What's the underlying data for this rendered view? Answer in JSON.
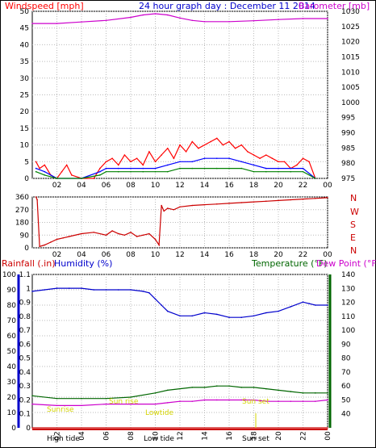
{
  "top_labels": {
    "left": "Windspeed [mph]",
    "title": "24 hour graph day : December 11 2014",
    "right": "Barometer [mb]"
  },
  "bottom_labels": {
    "rainfall": "Rainfall (.in)",
    "humidity": "Humidity (%)",
    "temperature": "Temperature (°F)",
    "dewpoint": "Dew Point (°F)"
  },
  "colors": {
    "wind": "#ff0000",
    "gust": "#0000ff",
    "avg": "#008000",
    "barometer": "#cc00cc",
    "direction": "#cc0000",
    "rain": "#cc0000",
    "humidity": "#0000cc",
    "temperature": "#006600",
    "dewpoint": "#cc00cc",
    "astro": "#dddd00",
    "grid": "#bbbbbb"
  },
  "x_ticks": [
    "02",
    "04",
    "06",
    "08",
    "10",
    "12",
    "14",
    "16",
    "18",
    "20",
    "22",
    "00"
  ],
  "compass": [
    "N",
    "W",
    "S",
    "E",
    "N"
  ],
  "astro_labels": [
    "High tide",
    "Low tide",
    "Sun set",
    "Sunrise",
    "Sun rise",
    "Lowtide",
    "Sun set"
  ],
  "chart_data": [
    {
      "type": "line",
      "name": "windspeed-barometer",
      "xlim": [
        0,
        24
      ],
      "y_left": {
        "label": "Windspeed [mph]",
        "range": [
          0,
          50
        ],
        "ticks": [
          0,
          5,
          10,
          15,
          20,
          25,
          30,
          35,
          40,
          45,
          50
        ]
      },
      "y_right": {
        "label": "Barometer [mb]",
        "range": [
          975,
          1030
        ],
        "ticks": [
          975,
          980,
          985,
          990,
          995,
          1000,
          1005,
          1010,
          1015,
          1020,
          1025,
          1030
        ]
      },
      "series": [
        {
          "key": "barometer",
          "axis": "right",
          "x": [
            0,
            2,
            4,
            6,
            8,
            9,
            10,
            11,
            12,
            13,
            14,
            16,
            18,
            20,
            22,
            24
          ],
          "y": [
            1026,
            1026,
            1026.5,
            1027,
            1028,
            1028.8,
            1029.2,
            1028.8,
            1027.8,
            1027,
            1026.6,
            1026.6,
            1026.9,
            1027.3,
            1027.6,
            1027.6
          ]
        },
        {
          "key": "wind",
          "axis": "left",
          "x": [
            0.3,
            0.6,
            1,
            1.5,
            2,
            2.4,
            2.8,
            3.2,
            4,
            5,
            5.5,
            6,
            6.5,
            7,
            7.5,
            8,
            8.5,
            9,
            9.5,
            10,
            10.5,
            11,
            11.5,
            12,
            12.5,
            13,
            13.5,
            14,
            14.5,
            15,
            15.5,
            16,
            16.5,
            17,
            17.5,
            18,
            18.5,
            19,
            19.5,
            20,
            20.5,
            21,
            21.5,
            22,
            22.5,
            23
          ],
          "y": [
            5,
            3,
            4,
            1,
            0,
            2,
            4,
            1,
            0,
            0,
            3,
            5,
            6,
            4,
            7,
            5,
            6,
            4,
            8,
            5,
            7,
            9,
            6,
            10,
            8,
            11,
            9,
            10,
            11,
            12,
            10,
            11,
            9,
            10,
            8,
            7,
            6,
            7,
            6,
            5,
            5,
            3,
            4,
            6,
            5,
            0
          ]
        },
        {
          "key": "gust",
          "axis": "left",
          "x": [
            0.3,
            1,
            2,
            4,
            5.5,
            6,
            7,
            8,
            9,
            10,
            11,
            12,
            13,
            14,
            15,
            16,
            17,
            18,
            19,
            20,
            21,
            22,
            23
          ],
          "y": [
            3,
            2,
            0,
            0,
            2,
            3,
            3,
            3,
            3,
            3,
            4,
            5,
            5,
            6,
            6,
            6,
            5,
            4,
            3,
            3,
            3,
            3,
            0
          ]
        },
        {
          "key": "avg",
          "axis": "left",
          "x": [
            0.3,
            1,
            2,
            4,
            5.5,
            6,
            7,
            8,
            9,
            10,
            11,
            12,
            13,
            14,
            15,
            16,
            17,
            18,
            19,
            20,
            21,
            22,
            23
          ],
          "y": [
            2,
            1,
            0,
            0,
            1,
            2,
            2,
            2,
            2,
            2,
            2,
            3,
            3,
            3,
            3,
            3,
            3,
            2,
            2,
            2,
            2,
            2,
            0
          ]
        }
      ]
    },
    {
      "type": "line",
      "name": "wind-direction",
      "xlim": [
        0,
        24
      ],
      "y_left": {
        "range": [
          0,
          360
        ],
        "ticks": [
          0,
          90,
          180,
          270,
          360
        ]
      },
      "series": [
        {
          "key": "direction",
          "x": [
            0.3,
            0.4,
            0.6,
            1,
            1.5,
            2,
            2.5,
            3,
            4,
            5,
            6,
            6.5,
            7,
            7.5,
            8,
            8.5,
            9,
            9.5,
            10,
            10.3,
            10.5,
            10.7,
            11,
            11.5,
            12,
            13,
            14,
            15,
            16,
            17,
            18,
            19,
            20,
            21,
            22,
            23,
            24
          ],
          "y": [
            360,
            340,
            10,
            20,
            40,
            60,
            70,
            80,
            100,
            110,
            90,
            120,
            100,
            90,
            110,
            80,
            90,
            100,
            60,
            20,
            300,
            260,
            280,
            270,
            290,
            300,
            305,
            310,
            315,
            320,
            325,
            330,
            335,
            340,
            345,
            350,
            355
          ]
        }
      ]
    },
    {
      "type": "line",
      "name": "rain-humidity-temperature",
      "xlim": [
        0,
        24
      ],
      "y_left": {
        "label": "Humidity (%)",
        "range": [
          0,
          100
        ],
        "ticks": [
          0,
          10,
          20,
          30,
          40,
          50,
          60,
          70,
          80,
          90,
          100
        ]
      },
      "y_rain": {
        "label": "Rainfall (.in)",
        "range": [
          0,
          1.1
        ],
        "ticks": [
          0,
          0.1,
          0.2,
          0.3,
          0.4,
          0.5,
          0.6,
          0.7,
          0.8,
          0.9,
          1,
          1.1
        ]
      },
      "y_right": {
        "label": "Temperature (°F)",
        "range": [
          30,
          140
        ],
        "ticks": [
          40,
          50,
          60,
          70,
          80,
          90,
          100,
          110,
          120,
          130,
          140
        ]
      },
      "series": [
        {
          "key": "humidity",
          "axis": "left",
          "x": [
            0,
            1,
            2,
            3,
            4,
            5,
            6,
            7,
            8,
            9,
            9.5,
            10,
            10.5,
            11,
            12,
            13,
            14,
            15,
            16,
            17,
            18,
            19,
            20,
            21,
            22,
            22.5,
            23,
            24
          ],
          "y": [
            89,
            90,
            91,
            91,
            91,
            90,
            90,
            90,
            90,
            89,
            88,
            84,
            80,
            76,
            73,
            73,
            75,
            74,
            72,
            72,
            73,
            75,
            76,
            79,
            82,
            81,
            80,
            80
          ]
        },
        {
          "key": "temperature",
          "axis": "right",
          "x": [
            0,
            2,
            4,
            6,
            8,
            10,
            11,
            12,
            13,
            14,
            15,
            16,
            17,
            18,
            19,
            20,
            21,
            22,
            23,
            24
          ],
          "y": [
            53,
            51,
            51,
            51,
            52,
            55,
            57,
            58,
            59,
            59,
            60,
            60,
            59,
            59,
            58,
            57,
            56,
            55,
            55,
            55
          ]
        },
        {
          "key": "dewpoint",
          "axis": "right",
          "x": [
            0,
            2,
            4,
            6,
            8,
            10,
            11,
            12,
            13,
            14,
            15,
            16,
            17,
            18,
            19,
            20,
            21,
            22,
            23,
            24
          ],
          "y": [
            47,
            46,
            46,
            47,
            47,
            47,
            48,
            49,
            49,
            50,
            50,
            50,
            50,
            50,
            49,
            49,
            49,
            49,
            49,
            50
          ]
        },
        {
          "key": "rain",
          "axis": "rain",
          "x": [
            0,
            24
          ],
          "y": [
            0,
            0
          ]
        }
      ]
    }
  ]
}
